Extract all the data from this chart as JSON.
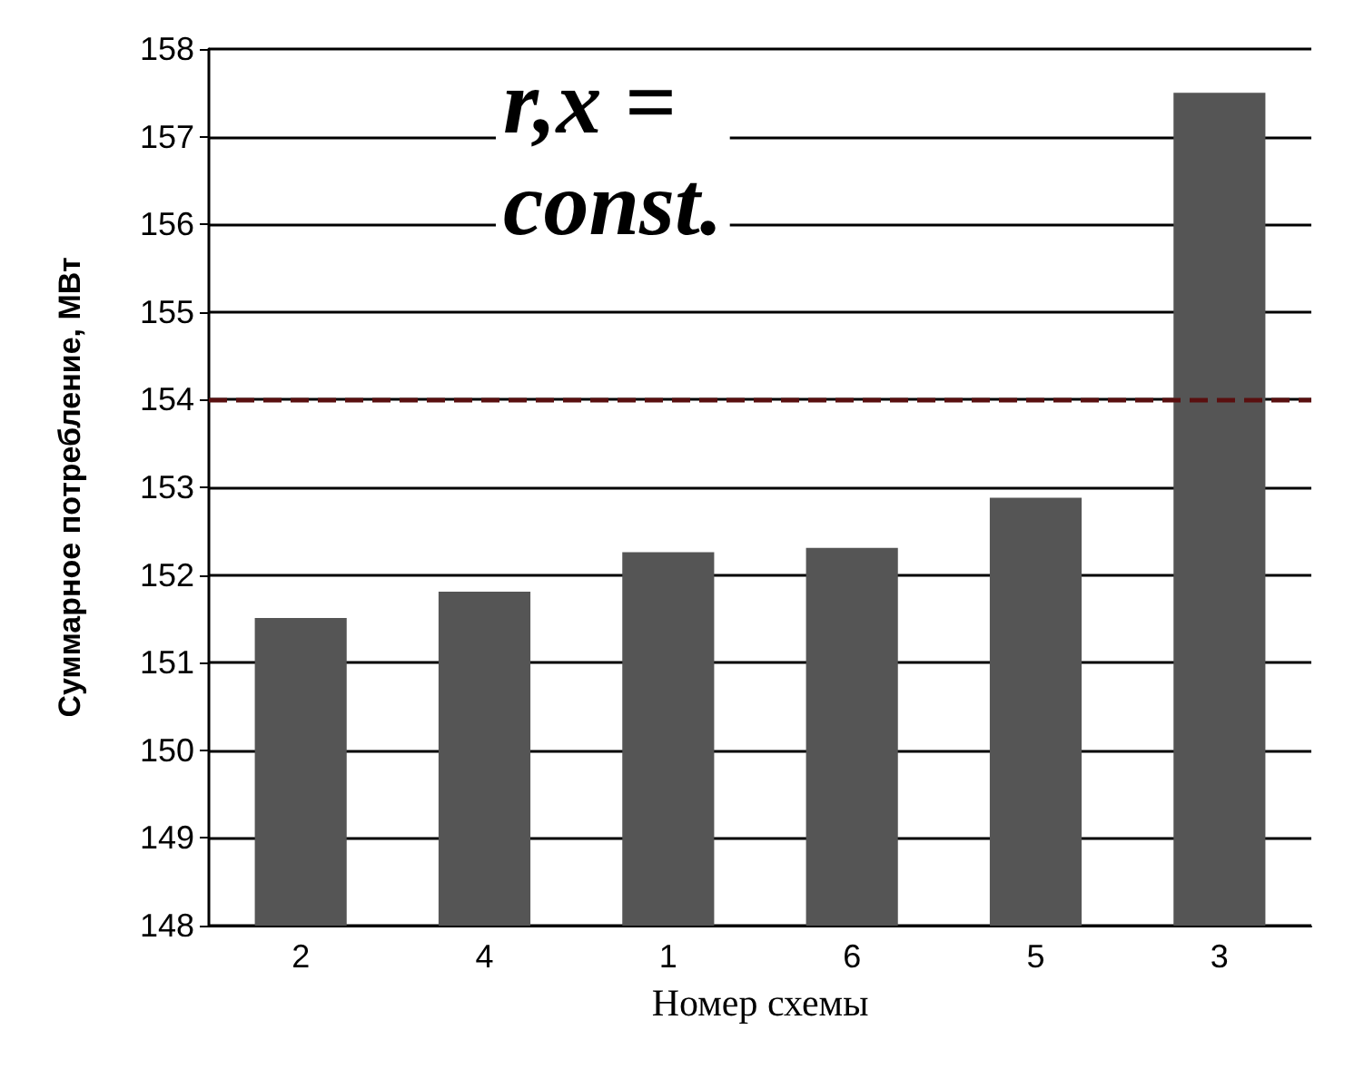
{
  "chart_data": {
    "type": "bar",
    "categories": [
      "2",
      "4",
      "1",
      "6",
      "5",
      "3"
    ],
    "values": [
      151.51,
      151.81,
      152.26,
      152.31,
      152.88,
      157.5
    ],
    "color": "#555555",
    "xlabel": "Номер схемы",
    "ylabel": "Суммарное потребление, МВт",
    "ylim": [
      148,
      158
    ],
    "yticks": [
      148,
      149,
      150,
      151,
      152,
      153,
      154,
      155,
      156,
      157,
      158
    ],
    "grid": "y",
    "ref_lines": [
      {
        "axis": "y",
        "value": 154,
        "color": "#5a1010",
        "line_style": "dashed"
      }
    ],
    "annotations": [
      "r,x =\nconst."
    ]
  }
}
